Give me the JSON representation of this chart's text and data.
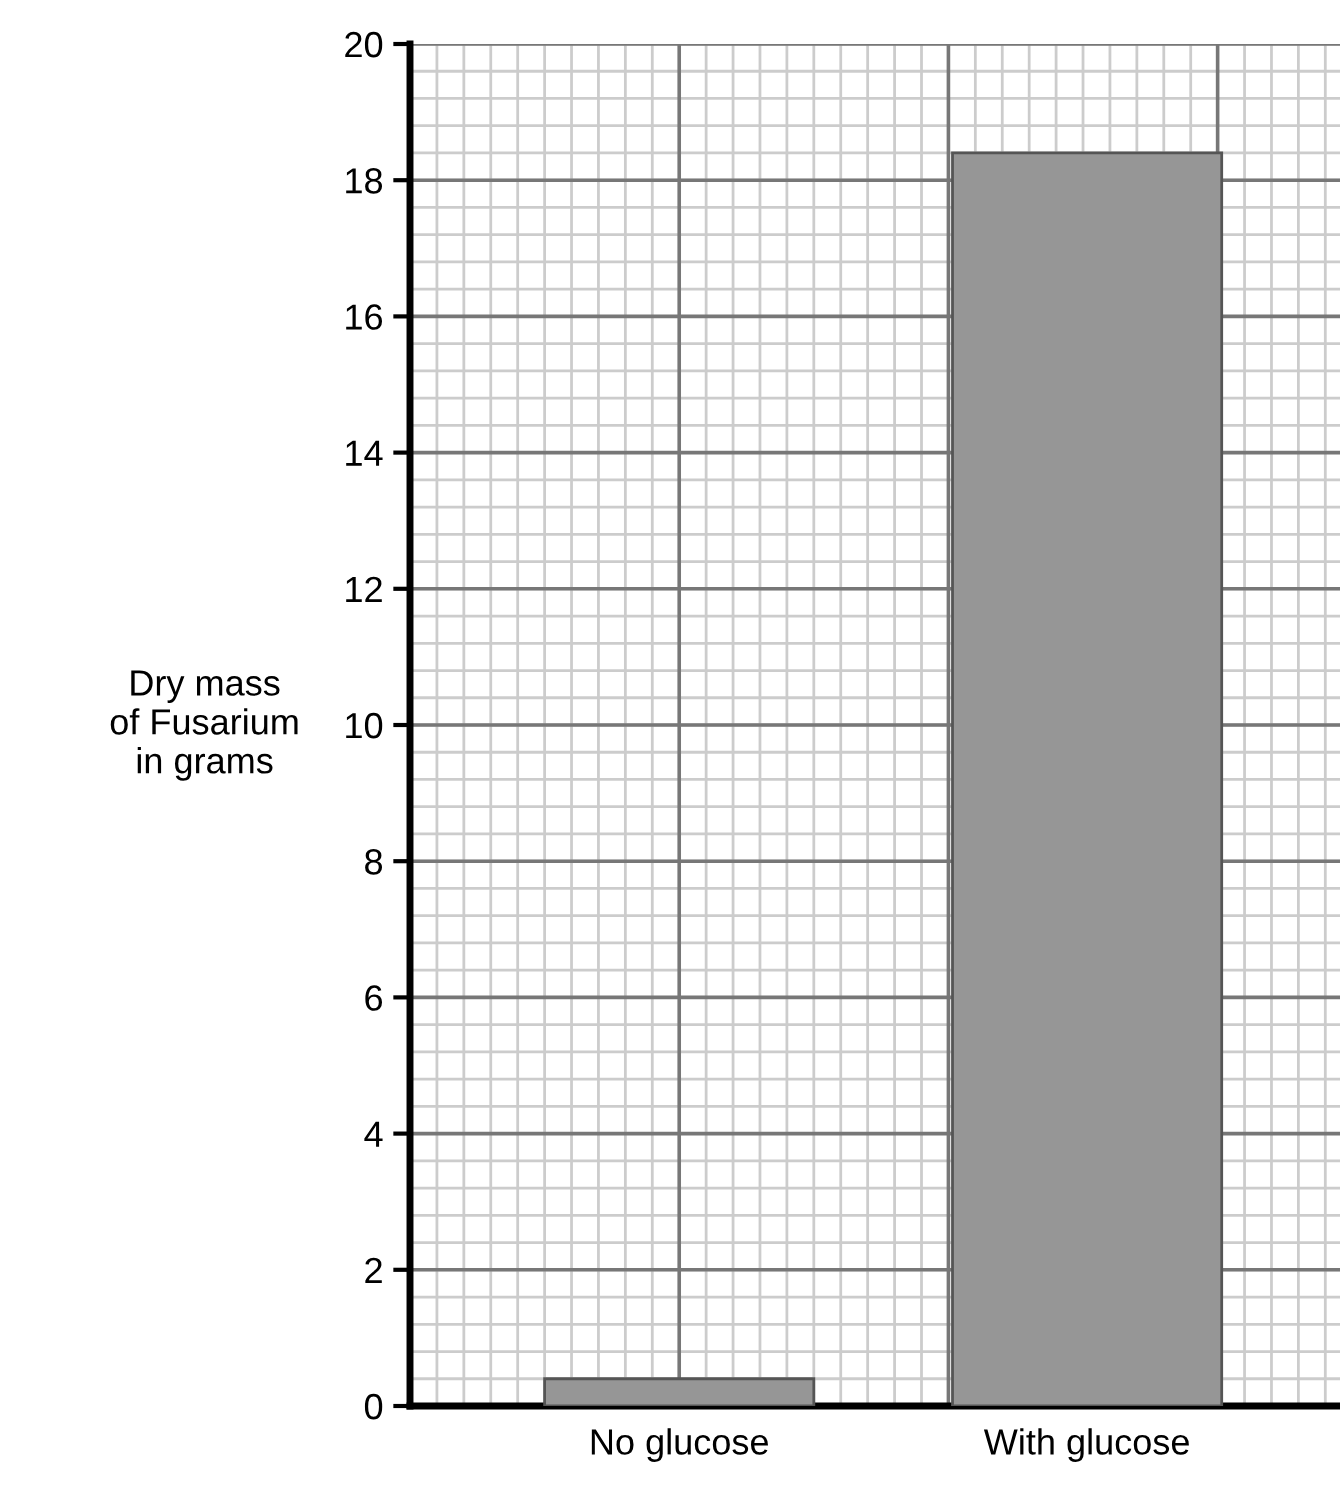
{
  "chart_data": {
    "type": "bar",
    "ylabel": "Dry mass\nof Fusarium\nin grams",
    "categories": [
      "No glucose",
      "With glucose"
    ],
    "values": [
      0.4,
      18.4
    ],
    "color": "#969696",
    "ylim": [
      0,
      20
    ],
    "yticks": [
      0,
      2,
      4,
      6,
      8,
      10,
      12,
      14,
      16,
      18,
      20
    ],
    "grid": true
  }
}
